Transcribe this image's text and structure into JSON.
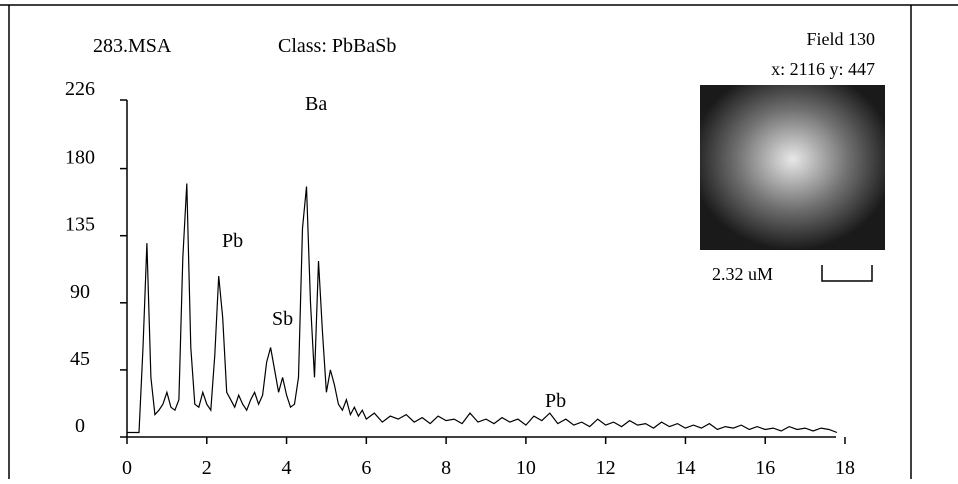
{
  "chart_data": {
    "type": "line",
    "title": "283.MSA",
    "subtitle": "Class: PbBaSb",
    "image_info": {
      "field": "Field  130",
      "coords": "x: 2116  y: 447",
      "scale_label": "2.32 uM"
    },
    "annotations": [
      "Ba",
      "Pb",
      "Sb",
      "Pb"
    ],
    "xlim": [
      0,
      18
    ],
    "xticks": [
      0,
      2,
      4,
      6,
      8,
      10,
      12,
      14,
      16,
      18
    ],
    "ylim": [
      0,
      226
    ],
    "yticks": [
      0,
      45,
      90,
      135,
      180,
      226
    ],
    "color": "#000000",
    "x": [
      0.0,
      0.1,
      0.2,
      0.3,
      0.4,
      0.5,
      0.6,
      0.7,
      0.8,
      0.9,
      1.0,
      1.1,
      1.2,
      1.3,
      1.4,
      1.5,
      1.6,
      1.7,
      1.8,
      1.9,
      2.0,
      2.1,
      2.2,
      2.3,
      2.4,
      2.5,
      2.6,
      2.7,
      2.8,
      2.9,
      3.0,
      3.1,
      3.2,
      3.3,
      3.4,
      3.5,
      3.6,
      3.7,
      3.8,
      3.9,
      4.0,
      4.1,
      4.2,
      4.3,
      4.4,
      4.5,
      4.6,
      4.7,
      4.8,
      4.9,
      5.0,
      5.1,
      5.2,
      5.3,
      5.4,
      5.5,
      5.6,
      5.7,
      5.8,
      5.9,
      6.0,
      6.2,
      6.4,
      6.6,
      6.8,
      7.0,
      7.2,
      7.4,
      7.6,
      7.8,
      8.0,
      8.2,
      8.4,
      8.6,
      8.8,
      9.0,
      9.2,
      9.4,
      9.6,
      9.8,
      10.0,
      10.2,
      10.4,
      10.6,
      10.8,
      11.0,
      11.2,
      11.4,
      11.6,
      11.8,
      12.0,
      12.2,
      12.4,
      12.6,
      12.8,
      13.0,
      13.2,
      13.4,
      13.6,
      13.8,
      14.0,
      14.2,
      14.4,
      14.6,
      14.8,
      15.0,
      15.2,
      15.4,
      15.6,
      15.8,
      16.0,
      16.2,
      16.4,
      16.6,
      16.8,
      17.0,
      17.2,
      17.4,
      17.6,
      17.8
    ],
    "values": [
      3,
      3,
      3,
      3,
      60,
      130,
      40,
      15,
      18,
      22,
      30,
      20,
      18,
      25,
      120,
      170,
      60,
      22,
      20,
      30,
      22,
      18,
      55,
      108,
      80,
      30,
      25,
      20,
      28,
      22,
      18,
      25,
      30,
      22,
      28,
      50,
      60,
      45,
      30,
      40,
      28,
      20,
      22,
      40,
      140,
      168,
      90,
      40,
      118,
      70,
      30,
      45,
      35,
      22,
      18,
      25,
      15,
      20,
      14,
      18,
      12,
      16,
      10,
      14,
      12,
      15,
      10,
      13,
      9,
      14,
      11,
      12,
      9,
      16,
      10,
      12,
      9,
      13,
      10,
      12,
      8,
      14,
      11,
      16,
      9,
      12,
      8,
      10,
      7,
      12,
      8,
      10,
      7,
      11,
      8,
      9,
      6,
      10,
      7,
      9,
      6,
      8,
      6,
      9,
      5,
      7,
      6,
      8,
      5,
      7,
      5,
      6,
      4,
      7,
      5,
      6,
      4,
      6,
      5,
      3
    ]
  }
}
